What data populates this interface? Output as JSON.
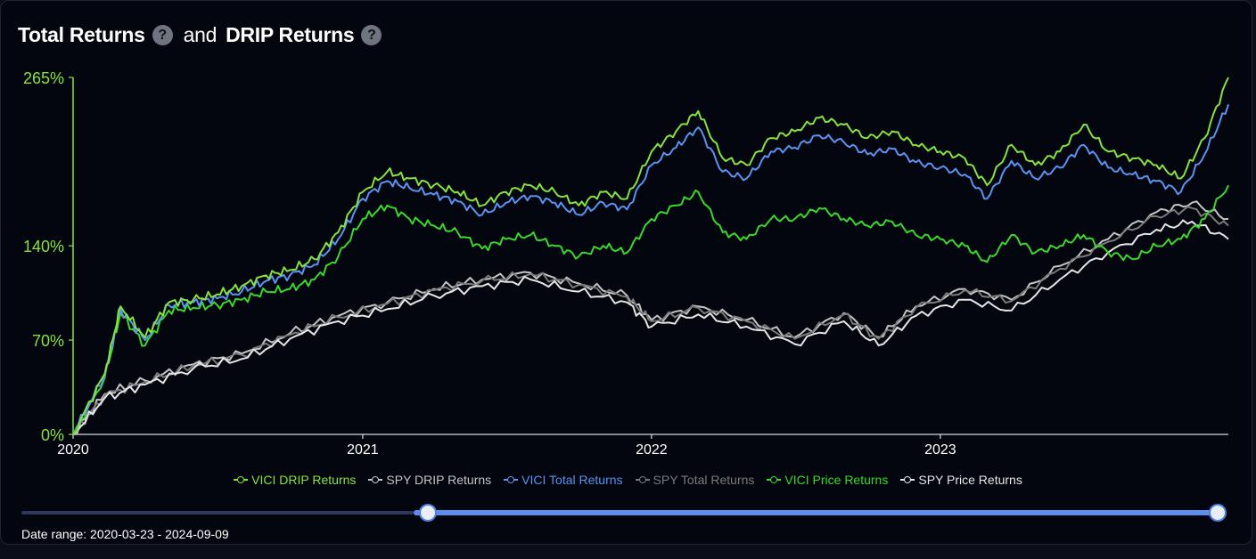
{
  "header": {
    "title_total": "Total Returns",
    "title_and": "and",
    "title_drip": "DRIP Returns",
    "help_glyph": "?"
  },
  "chart_data": {
    "type": "line",
    "title": "Total Returns and DRIP Returns",
    "x_ticks": [
      "2020",
      "2021",
      "2022",
      "2023"
    ],
    "y_ticks": [
      "0%",
      "70%",
      "140%",
      "265%"
    ],
    "ylim": [
      0,
      265
    ],
    "xlim": [
      "2020-01-01",
      "2023-12-31"
    ],
    "grid": false,
    "legend": "bottom",
    "series": [
      {
        "name": "VICI DRIP Returns",
        "color": "#86e33f",
        "x": [
          "2020-01-01",
          "2020-02-10",
          "2020-03-01",
          "2020-04-01",
          "2020-05-01",
          "2020-06-01",
          "2020-07-01",
          "2020-08-01",
          "2020-09-01",
          "2020-10-01",
          "2020-11-01",
          "2020-12-01",
          "2021-01-01",
          "2021-02-01",
          "2021-03-01",
          "2021-04-01",
          "2021-05-01",
          "2021-06-01",
          "2021-07-01",
          "2021-08-01",
          "2021-09-01",
          "2021-10-01",
          "2021-11-01",
          "2021-12-01",
          "2022-01-01",
          "2022-02-01",
          "2022-03-01",
          "2022-04-01",
          "2022-05-01",
          "2022-06-01",
          "2022-07-01",
          "2022-08-01",
          "2022-09-01",
          "2022-10-01",
          "2022-11-01",
          "2022-12-01",
          "2023-01-01",
          "2023-02-01",
          "2023-03-01",
          "2023-04-01",
          "2023-05-01",
          "2023-06-01",
          "2023-07-01",
          "2023-08-01",
          "2023-09-01",
          "2023-10-01",
          "2023-11-01",
          "2023-12-01",
          "2023-12-31"
        ],
        "y": [
          0,
          45,
          95,
          72,
          98,
          100,
          104,
          110,
          118,
          122,
          130,
          150,
          180,
          195,
          190,
          185,
          180,
          170,
          180,
          185,
          180,
          170,
          180,
          175,
          210,
          225,
          240,
          205,
          200,
          220,
          225,
          235,
          230,
          220,
          225,
          215,
          210,
          205,
          185,
          215,
          200,
          210,
          230,
          210,
          205,
          200,
          190,
          220,
          265
        ]
      },
      {
        "name": "SPY DRIP Returns",
        "color": "#c4c4c4",
        "x": [
          "2020-01-01",
          "2020-02-10",
          "2020-04-01",
          "2020-06-01",
          "2020-08-01",
          "2020-10-01",
          "2020-12-01",
          "2021-02-01",
          "2021-04-01",
          "2021-06-01",
          "2021-08-01",
          "2021-10-01",
          "2021-12-01",
          "2022-01-01",
          "2022-03-01",
          "2022-05-01",
          "2022-07-01",
          "2022-09-01",
          "2022-10-15",
          "2022-12-01",
          "2023-02-01",
          "2023-04-01",
          "2023-06-01",
          "2023-08-01",
          "2023-10-01",
          "2023-11-15",
          "2023-12-31"
        ],
        "y": [
          0,
          30,
          40,
          52,
          60,
          75,
          88,
          98,
          108,
          115,
          120,
          112,
          103,
          85,
          95,
          85,
          72,
          90,
          72,
          95,
          108,
          100,
          125,
          145,
          165,
          172,
          160
        ]
      },
      {
        "name": "VICI Total Returns",
        "color": "#5b93f0",
        "x": [
          "2020-01-01",
          "2020-02-10",
          "2020-03-01",
          "2020-04-01",
          "2020-05-01",
          "2020-06-01",
          "2020-07-01",
          "2020-08-01",
          "2020-09-01",
          "2020-10-01",
          "2020-11-01",
          "2020-12-01",
          "2021-01-01",
          "2021-02-01",
          "2021-03-01",
          "2021-04-01",
          "2021-05-01",
          "2021-06-01",
          "2021-07-01",
          "2021-08-01",
          "2021-09-01",
          "2021-10-01",
          "2021-11-01",
          "2021-12-01",
          "2022-01-01",
          "2022-02-01",
          "2022-03-01",
          "2022-04-01",
          "2022-05-01",
          "2022-06-01",
          "2022-07-01",
          "2022-08-01",
          "2022-09-01",
          "2022-10-01",
          "2022-11-01",
          "2022-12-01",
          "2023-01-01",
          "2023-02-01",
          "2023-03-01",
          "2023-04-01",
          "2023-05-01",
          "2023-06-01",
          "2023-07-01",
          "2023-08-01",
          "2023-09-01",
          "2023-10-01",
          "2023-11-01",
          "2023-12-01",
          "2023-12-31"
        ],
        "y": [
          0,
          44,
          93,
          70,
          96,
          98,
          101,
          106,
          114,
          118,
          126,
          145,
          175,
          188,
          183,
          178,
          173,
          163,
          172,
          177,
          172,
          163,
          172,
          167,
          200,
          213,
          228,
          195,
          190,
          210,
          213,
          222,
          217,
          208,
          212,
          202,
          198,
          193,
          175,
          203,
          190,
          198,
          215,
          198,
          193,
          188,
          180,
          208,
          245
        ]
      },
      {
        "name": "SPY Total Returns",
        "color": "#7a7a7a",
        "x": [
          "2020-01-01",
          "2020-02-10",
          "2020-04-01",
          "2020-06-01",
          "2020-08-01",
          "2020-10-01",
          "2020-12-01",
          "2021-02-01",
          "2021-04-01",
          "2021-06-01",
          "2021-08-01",
          "2021-10-01",
          "2021-12-01",
          "2022-01-01",
          "2022-03-01",
          "2022-05-01",
          "2022-07-01",
          "2022-09-01",
          "2022-10-15",
          "2022-12-01",
          "2023-02-01",
          "2023-04-01",
          "2023-06-01",
          "2023-08-01",
          "2023-10-01",
          "2023-11-15",
          "2023-12-31"
        ],
        "y": [
          0,
          29,
          39,
          51,
          59,
          74,
          87,
          97,
          107,
          114,
          119,
          111,
          102,
          84,
          94,
          84,
          71,
          89,
          71,
          94,
          107,
          99,
          123,
          143,
          162,
          168,
          155
        ]
      },
      {
        "name": "VICI Price Returns",
        "color": "#3ad82a",
        "x": [
          "2020-01-01",
          "2020-02-10",
          "2020-03-01",
          "2020-04-01",
          "2020-05-01",
          "2020-06-01",
          "2020-07-01",
          "2020-08-01",
          "2020-09-01",
          "2020-10-01",
          "2020-11-01",
          "2020-12-01",
          "2021-01-01",
          "2021-02-01",
          "2021-03-01",
          "2021-04-01",
          "2021-05-01",
          "2021-06-01",
          "2021-07-01",
          "2021-08-01",
          "2021-09-01",
          "2021-10-01",
          "2021-11-01",
          "2021-12-01",
          "2022-01-01",
          "2022-02-01",
          "2022-03-01",
          "2022-04-01",
          "2022-05-01",
          "2022-06-01",
          "2022-07-01",
          "2022-08-01",
          "2022-09-01",
          "2022-10-01",
          "2022-11-01",
          "2022-12-01",
          "2023-01-01",
          "2023-02-01",
          "2023-03-01",
          "2023-04-01",
          "2023-05-01",
          "2023-06-01",
          "2023-07-01",
          "2023-08-01",
          "2023-09-01",
          "2023-10-01",
          "2023-11-01",
          "2023-12-01",
          "2023-12-31"
        ],
        "y": [
          0,
          42,
          90,
          66,
          92,
          94,
          96,
          100,
          106,
          108,
          115,
          132,
          160,
          170,
          160,
          155,
          150,
          138,
          145,
          148,
          140,
          132,
          140,
          135,
          160,
          170,
          180,
          150,
          145,
          160,
          160,
          168,
          160,
          155,
          158,
          148,
          145,
          140,
          128,
          148,
          135,
          140,
          148,
          135,
          130,
          140,
          145,
          160,
          185
        ]
      },
      {
        "name": "SPY Price Returns",
        "color": "#e6e6e6",
        "x": [
          "2020-01-01",
          "2020-02-10",
          "2020-04-01",
          "2020-06-01",
          "2020-08-01",
          "2020-10-01",
          "2020-12-01",
          "2021-02-01",
          "2021-04-01",
          "2021-06-01",
          "2021-08-01",
          "2021-10-01",
          "2021-12-01",
          "2022-01-01",
          "2022-03-01",
          "2022-05-01",
          "2022-07-01",
          "2022-09-01",
          "2022-10-15",
          "2022-12-01",
          "2023-02-01",
          "2023-04-01",
          "2023-06-01",
          "2023-08-01",
          "2023-10-01",
          "2023-11-15",
          "2023-12-31"
        ],
        "y": [
          0,
          27,
          37,
          49,
          56,
          71,
          84,
          93,
          103,
          110,
          115,
          106,
          98,
          80,
          89,
          80,
          67,
          84,
          66,
          88,
          100,
          92,
          115,
          135,
          152,
          158,
          145
        ]
      }
    ]
  },
  "slider": {
    "date_range_label": "Date range: 2020-03-23 - 2024-09-09",
    "range_start_fraction": 0.34,
    "range_end_fraction": 1.0
  },
  "colors": {
    "background": "#03060f",
    "axis": "#86e33f",
    "tick_y": "#86e33f",
    "tick_x": "#ffffff",
    "slider_active": "#5b8fef",
    "slider_inactive": "#2b3a5e"
  }
}
